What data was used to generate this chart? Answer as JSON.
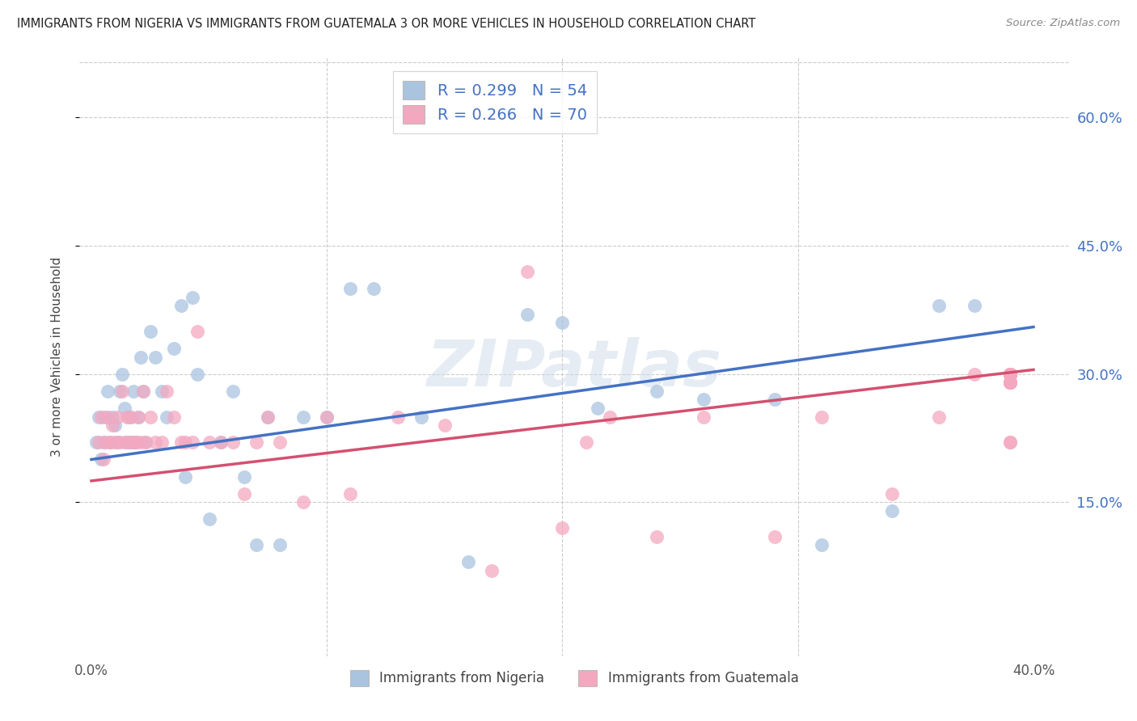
{
  "title": "IMMIGRANTS FROM NIGERIA VS IMMIGRANTS FROM GUATEMALA 3 OR MORE VEHICLES IN HOUSEHOLD CORRELATION CHART",
  "source": "Source: ZipAtlas.com",
  "ylabel": "3 or more Vehicles in Household",
  "ytick_values": [
    0.15,
    0.3,
    0.45,
    0.6
  ],
  "ytick_labels": [
    "15.0%",
    "30.0%",
    "45.0%",
    "60.0%"
  ],
  "xtick_values": [
    0.0,
    0.1,
    0.2,
    0.3,
    0.4
  ],
  "xtick_labels": [
    "0.0%",
    "",
    "",
    "",
    "40.0%"
  ],
  "xlim": [
    -0.005,
    0.415
  ],
  "ylim": [
    -0.03,
    0.67
  ],
  "nigeria_color": "#aac4e0",
  "nigeria_line_color": "#4472c4",
  "guatemala_color": "#f4a8c0",
  "guatemala_line_color": "#d45070",
  "nigeria_R": 0.299,
  "nigeria_N": 54,
  "guatemala_R": 0.266,
  "guatemala_N": 70,
  "watermark": "ZIPatlas",
  "nigeria_line_x0": 0.0,
  "nigeria_line_y0": 0.2,
  "nigeria_line_x1": 0.4,
  "nigeria_line_y1": 0.355,
  "guatemala_line_x0": 0.0,
  "guatemala_line_y0": 0.175,
  "guatemala_line_x1": 0.4,
  "guatemala_line_y1": 0.305,
  "nigeria_x": [
    0.002,
    0.003,
    0.004,
    0.005,
    0.006,
    0.007,
    0.008,
    0.009,
    0.01,
    0.011,
    0.012,
    0.013,
    0.014,
    0.015,
    0.016,
    0.017,
    0.018,
    0.019,
    0.02,
    0.021,
    0.022,
    0.023,
    0.025,
    0.027,
    0.03,
    0.032,
    0.035,
    0.038,
    0.04,
    0.043,
    0.045,
    0.05,
    0.055,
    0.06,
    0.065,
    0.07,
    0.075,
    0.08,
    0.09,
    0.1,
    0.11,
    0.12,
    0.14,
    0.16,
    0.185,
    0.2,
    0.215,
    0.24,
    0.26,
    0.29,
    0.31,
    0.34,
    0.36,
    0.375
  ],
  "nigeria_y": [
    0.22,
    0.25,
    0.2,
    0.22,
    0.25,
    0.28,
    0.22,
    0.25,
    0.24,
    0.22,
    0.28,
    0.3,
    0.26,
    0.22,
    0.25,
    0.22,
    0.28,
    0.22,
    0.25,
    0.32,
    0.28,
    0.22,
    0.35,
    0.32,
    0.28,
    0.25,
    0.33,
    0.38,
    0.18,
    0.39,
    0.3,
    0.13,
    0.22,
    0.28,
    0.18,
    0.1,
    0.25,
    0.1,
    0.25,
    0.25,
    0.4,
    0.4,
    0.25,
    0.08,
    0.37,
    0.36,
    0.26,
    0.28,
    0.27,
    0.27,
    0.1,
    0.14,
    0.38,
    0.38
  ],
  "guatemala_x": [
    0.003,
    0.004,
    0.005,
    0.006,
    0.007,
    0.008,
    0.009,
    0.01,
    0.011,
    0.012,
    0.013,
    0.014,
    0.015,
    0.016,
    0.017,
    0.018,
    0.019,
    0.02,
    0.021,
    0.022,
    0.023,
    0.025,
    0.027,
    0.03,
    0.032,
    0.035,
    0.038,
    0.04,
    0.043,
    0.045,
    0.05,
    0.055,
    0.06,
    0.065,
    0.07,
    0.075,
    0.08,
    0.09,
    0.1,
    0.11,
    0.13,
    0.15,
    0.17,
    0.185,
    0.2,
    0.21,
    0.22,
    0.24,
    0.26,
    0.29,
    0.31,
    0.34,
    0.36,
    0.375,
    0.39,
    0.39,
    0.39,
    0.39,
    0.39,
    0.39,
    0.39,
    0.39,
    0.39,
    0.39,
    0.39,
    0.39,
    0.39,
    0.39,
    0.39,
    0.39
  ],
  "guatemala_y": [
    0.22,
    0.25,
    0.2,
    0.22,
    0.25,
    0.22,
    0.24,
    0.22,
    0.25,
    0.22,
    0.28,
    0.22,
    0.25,
    0.22,
    0.25,
    0.22,
    0.22,
    0.25,
    0.22,
    0.28,
    0.22,
    0.25,
    0.22,
    0.22,
    0.28,
    0.25,
    0.22,
    0.22,
    0.22,
    0.35,
    0.22,
    0.22,
    0.22,
    0.16,
    0.22,
    0.25,
    0.22,
    0.15,
    0.25,
    0.16,
    0.25,
    0.24,
    0.07,
    0.42,
    0.12,
    0.22,
    0.25,
    0.11,
    0.25,
    0.11,
    0.25,
    0.16,
    0.25,
    0.3,
    0.29,
    0.3,
    0.22,
    0.29,
    0.29,
    0.3,
    0.29,
    0.29,
    0.22,
    0.3,
    0.3,
    0.3,
    0.29,
    0.3,
    0.3,
    0.3
  ]
}
